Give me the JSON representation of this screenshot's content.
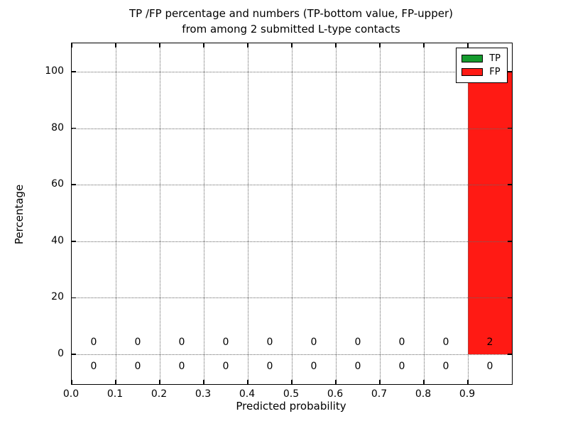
{
  "figure": {
    "title_line1": "TP /FP percentage and numbers (TP-bottom value, FP-upper)",
    "title_line2": "from among 2 submitted L-type contacts"
  },
  "chart_data": {
    "type": "bar",
    "stacked": true,
    "title": "TP /FP percentage and numbers (TP-bottom value, FP-upper)\nfrom among 2 submitted L-type contacts",
    "xlabel": "Predicted probability",
    "ylabel": "Percentage",
    "xlim": [
      0.0,
      1.0
    ],
    "ylim": [
      -10.55,
      110.05
    ],
    "grid": true,
    "grid_linestyle": "dotted",
    "legend_position": "upper right",
    "background_color": "#ffffff",
    "bin_width": 0.1,
    "bin_left_edges": [
      0.0,
      0.1,
      0.2,
      0.3,
      0.4,
      0.5,
      0.6,
      0.7,
      0.8,
      0.9
    ],
    "xtick_values": [
      0.0,
      0.1,
      0.2,
      0.3,
      0.4,
      0.5,
      0.6,
      0.7,
      0.8,
      0.9
    ],
    "xtick_labels": [
      "0.0",
      "0.1",
      "0.2",
      "0.3",
      "0.4",
      "0.5",
      "0.6",
      "0.7",
      "0.8",
      "0.9"
    ],
    "ytick_values": [
      0,
      20,
      40,
      60,
      80,
      100
    ],
    "ytick_labels": [
      "0",
      "20",
      "40",
      "60",
      "80",
      "100"
    ],
    "series": [
      {
        "name": "TP",
        "color": "#159b2e",
        "percent": [
          0,
          0,
          0,
          0,
          0,
          0,
          0,
          0,
          0,
          0
        ],
        "counts": [
          0,
          0,
          0,
          0,
          0,
          0,
          0,
          0,
          0,
          0
        ],
        "count_label_row_y": -4.3
      },
      {
        "name": "FP",
        "color": "#ff1a14",
        "percent": [
          0,
          0,
          0,
          0,
          0,
          0,
          0,
          0,
          0,
          100
        ],
        "counts": [
          0,
          0,
          0,
          0,
          0,
          0,
          0,
          0,
          0,
          2
        ],
        "count_label_row_y": 4.3
      }
    ]
  }
}
